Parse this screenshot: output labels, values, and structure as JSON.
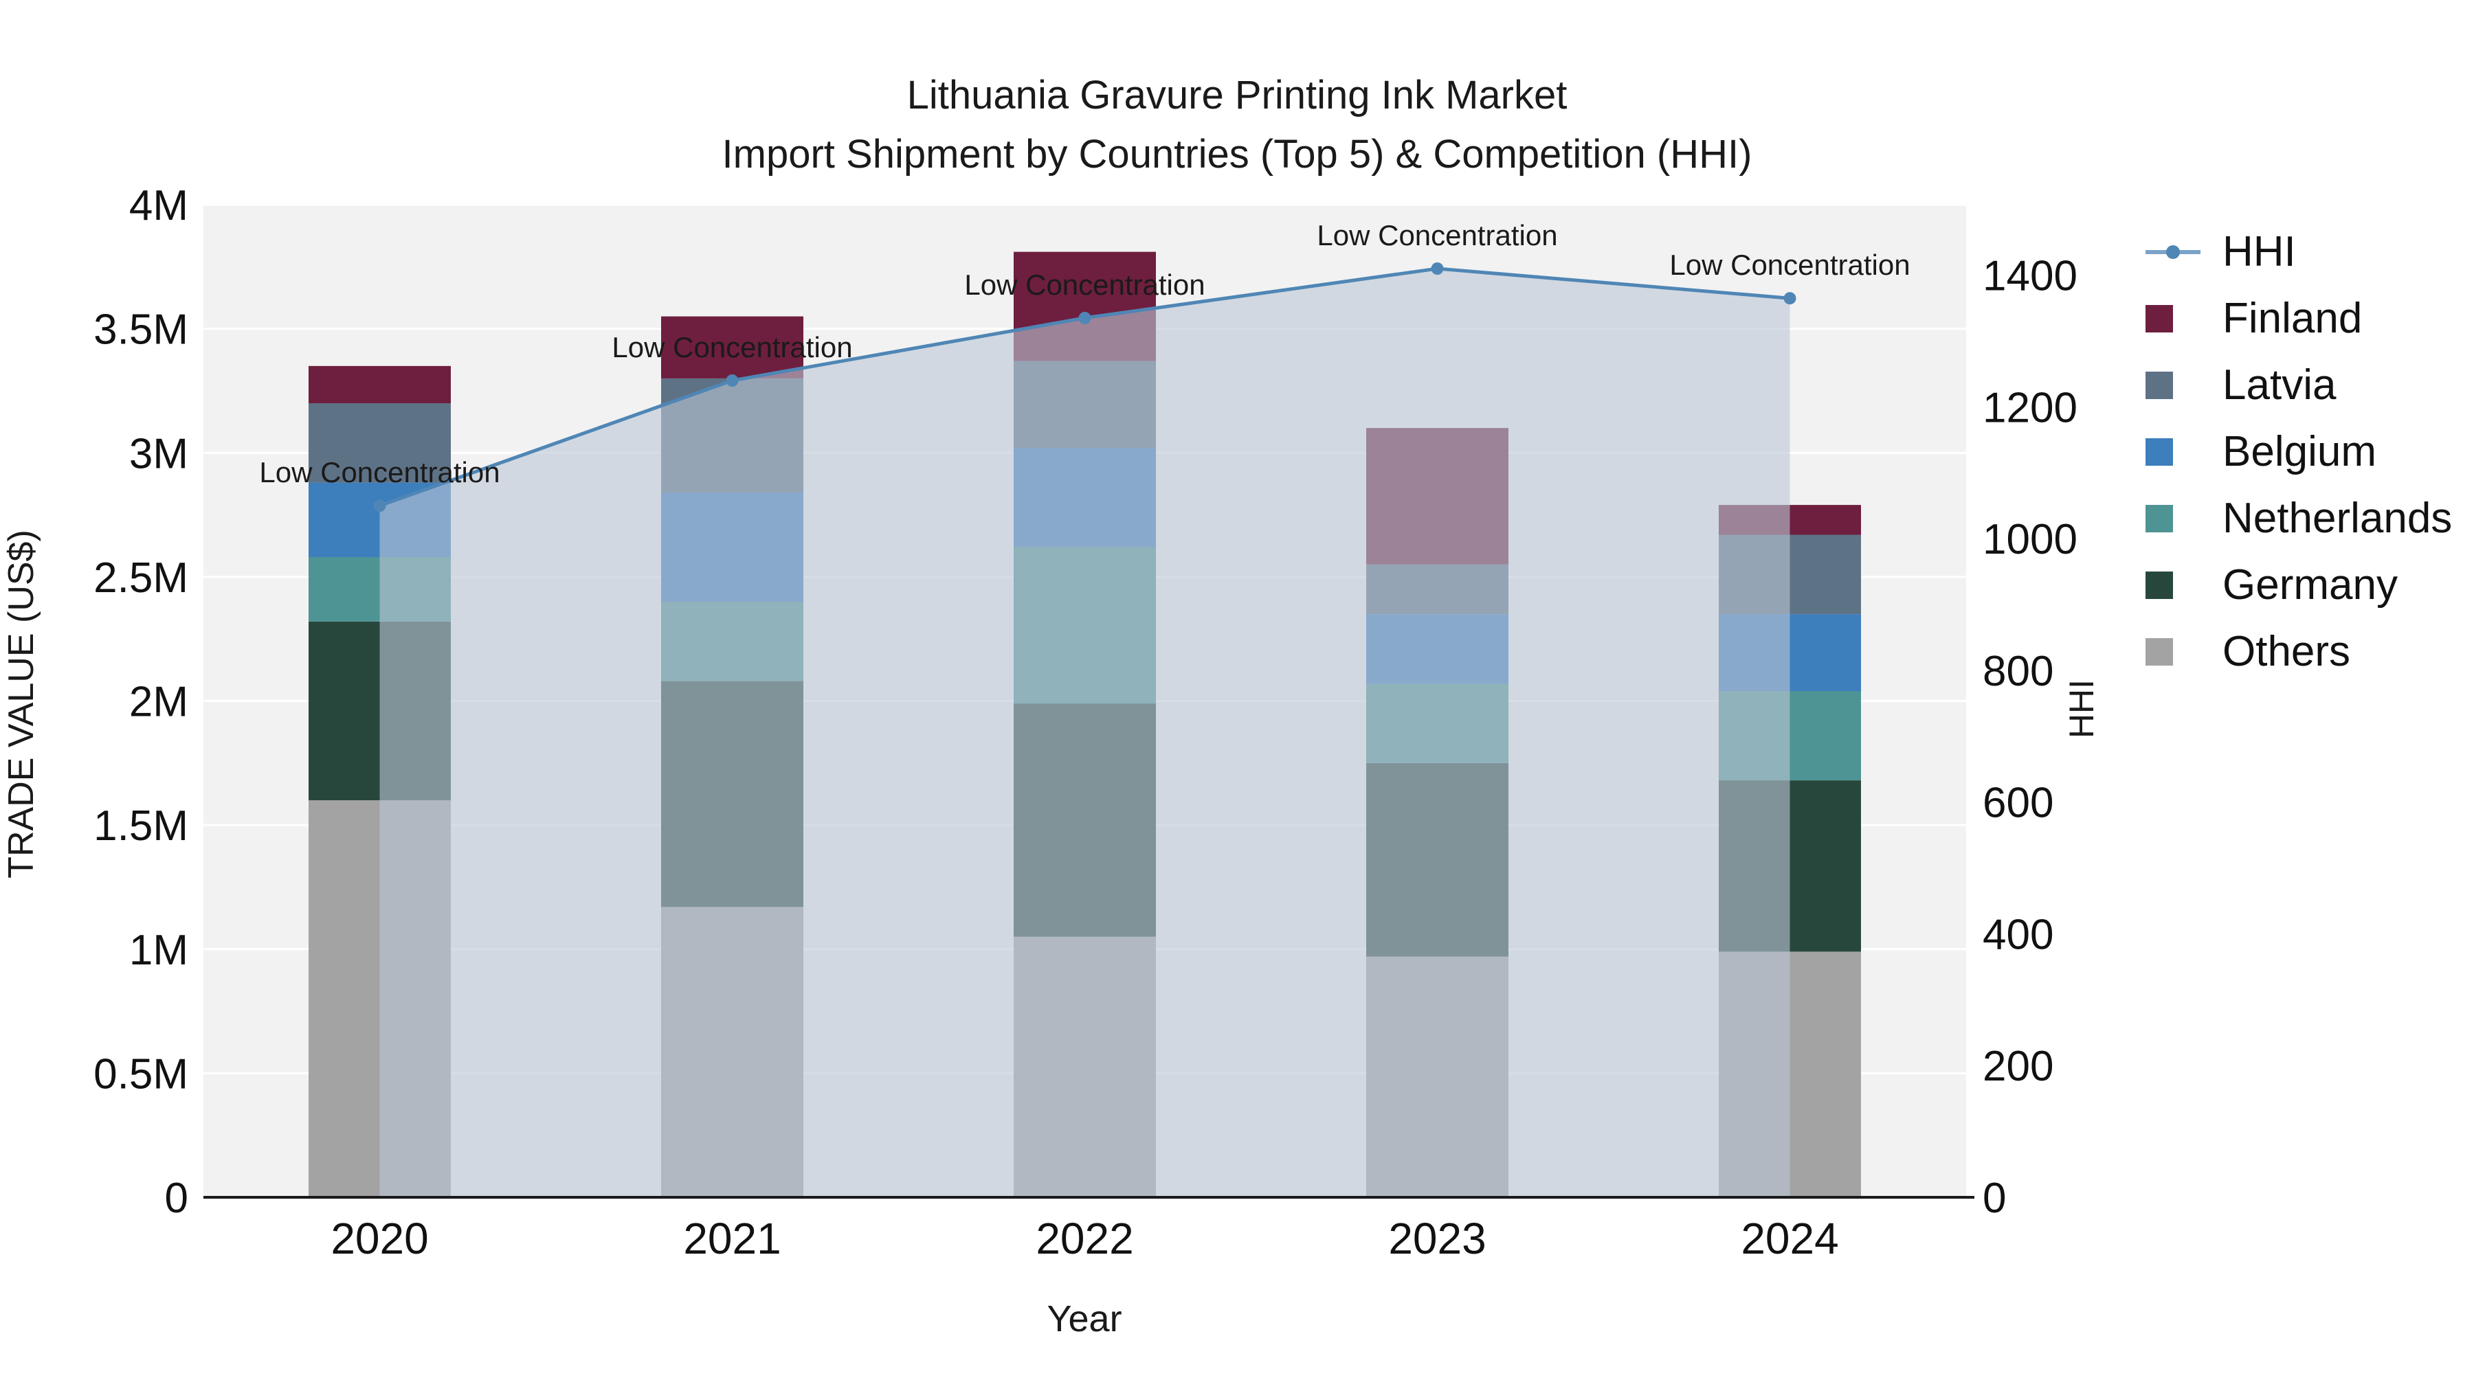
{
  "title": {
    "line1": "Lithuania Gravure Printing Ink Market",
    "line2": "Import Shipment by Countries (Top 5) & Competition (HHI)"
  },
  "chart_data": {
    "type": "bar+line",
    "title": "Lithuania Gravure Printing Ink Market Import Shipment by Countries (Top 5) & Competition (HHI)",
    "xlabel": "Year",
    "ylabel_left": "TRADE VALUE (US$)",
    "ylabel_right": "HHI",
    "categories": [
      "2020",
      "2021",
      "2022",
      "2023",
      "2024"
    ],
    "stack_order_bottom_to_top": [
      "Others",
      "Germany",
      "Netherlands",
      "Belgium",
      "Latvia",
      "Finland"
    ],
    "series": [
      {
        "name": "Others",
        "color": "#a3a3a3",
        "values": [
          1600000,
          1170000,
          1050000,
          970000,
          990000
        ]
      },
      {
        "name": "Germany",
        "color": "#27473d",
        "values": [
          720000,
          910000,
          940000,
          780000,
          690000
        ]
      },
      {
        "name": "Netherlands",
        "color": "#4f9494",
        "values": [
          260000,
          320000,
          630000,
          320000,
          360000
        ]
      },
      {
        "name": "Belgium",
        "color": "#3d7ebd",
        "values": [
          300000,
          440000,
          400000,
          280000,
          310000
        ]
      },
      {
        "name": "Latvia",
        "color": "#5e7286",
        "values": [
          320000,
          460000,
          350000,
          200000,
          320000
        ]
      },
      {
        "name": "Finland",
        "color": "#6e1e3e",
        "values": [
          150000,
          250000,
          440000,
          550000,
          120000
        ]
      }
    ],
    "bar_totals": [
      3350000,
      3550000,
      3810000,
      3100000,
      2790000
    ],
    "line_series": {
      "name": "HHI",
      "color": "#4f86b5",
      "area_fill": "rgba(186,198,214,0.6)",
      "values": [
        1050,
        1240,
        1335,
        1410,
        1365
      ]
    },
    "annotations": [
      "Low Concentration",
      "Low Concentration",
      "Low Concentration",
      "Low Concentration",
      "Low Concentration"
    ],
    "y_left_ticks": [
      {
        "label": "0",
        "value": 0
      },
      {
        "label": "0.5M",
        "value": 500000
      },
      {
        "label": "1M",
        "value": 1000000
      },
      {
        "label": "1.5M",
        "value": 1500000
      },
      {
        "label": "2M",
        "value": 2000000
      },
      {
        "label": "2.5M",
        "value": 2500000
      },
      {
        "label": "3M",
        "value": 3000000
      },
      {
        "label": "3.5M",
        "value": 3500000
      },
      {
        "label": "4M",
        "value": 4000000
      }
    ],
    "y_right_ticks": [
      {
        "label": "0",
        "value": 0
      },
      {
        "label": "200",
        "value": 200
      },
      {
        "label": "400",
        "value": 400
      },
      {
        "label": "600",
        "value": 600
      },
      {
        "label": "800",
        "value": 800
      },
      {
        "label": "1000",
        "value": 1000
      },
      {
        "label": "1200",
        "value": 1200
      },
      {
        "label": "1400",
        "value": 1400
      }
    ],
    "y_left_max": 4000000,
    "y_right_max": 1507,
    "plot_bg": "#f2f2f2",
    "grid_color": "#ffffff",
    "legend": [
      {
        "label": "HHI",
        "marker": "line",
        "color": "#4f86b5"
      },
      {
        "label": "Finland",
        "marker": "square",
        "color": "#6e1e3e"
      },
      {
        "label": "Latvia",
        "marker": "square",
        "color": "#5e7286"
      },
      {
        "label": "Belgium",
        "marker": "square",
        "color": "#3d7ebd"
      },
      {
        "label": "Netherlands",
        "marker": "square",
        "color": "#4f9494"
      },
      {
        "label": "Germany",
        "marker": "square",
        "color": "#27473d"
      },
      {
        "label": "Others",
        "marker": "square",
        "color": "#a3a3a3"
      }
    ]
  }
}
